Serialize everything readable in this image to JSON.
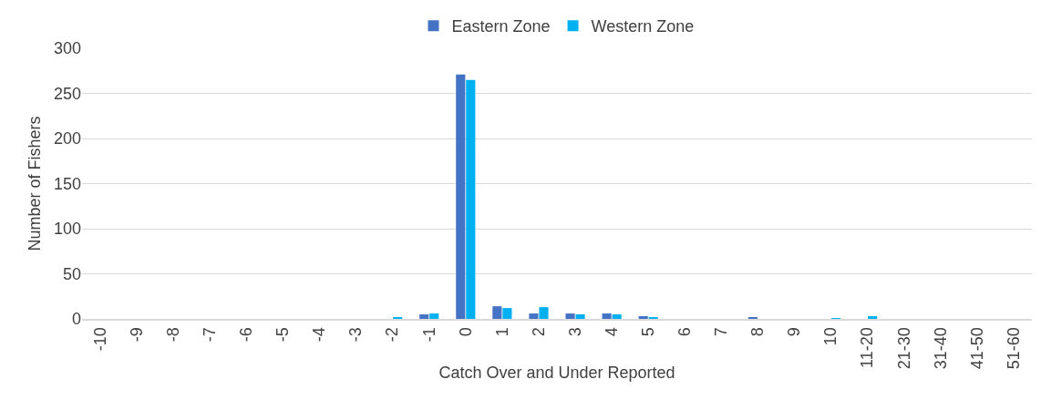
{
  "chart_data": {
    "type": "bar",
    "xlabel": "Catch Over and Under Reported",
    "ylabel": "Number of Fishers",
    "categories": [
      "-10",
      "-9",
      "-8",
      "-7",
      "-6",
      "-5",
      "-4",
      "-3",
      "-2",
      "-1",
      "0",
      "1",
      "2",
      "3",
      "4",
      "5",
      "6",
      "7",
      "8",
      "9",
      "10",
      "11-20",
      "21-30",
      "31-40",
      "41-50",
      "51-60"
    ],
    "series": [
      {
        "name": "Eastern Zone",
        "color": "#4472c4",
        "values": [
          0,
          0,
          0,
          0,
          0,
          0,
          0,
          0,
          0,
          5,
          271,
          14,
          6,
          6,
          6,
          3,
          0,
          0,
          2,
          0,
          0,
          0,
          0,
          0,
          0,
          0
        ]
      },
      {
        "name": "Western Zone",
        "color": "#00b0f0",
        "values": [
          0,
          0,
          0,
          0,
          0,
          0,
          0,
          0,
          2,
          6,
          265,
          12,
          13,
          5,
          5,
          2,
          0,
          0,
          0,
          0,
          1,
          3,
          0,
          0,
          0,
          0
        ]
      }
    ],
    "ylim": [
      0,
      300
    ],
    "yticks": [
      0,
      50,
      100,
      150,
      200,
      250,
      300
    ],
    "grid": "y",
    "legend": "top"
  }
}
